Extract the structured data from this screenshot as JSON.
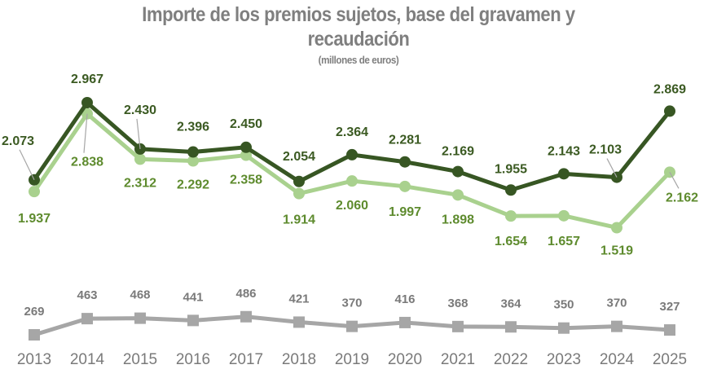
{
  "chart_data": {
    "type": "line",
    "title": "Importe de los premios sujetos, base del gravamen y recaudación",
    "title_line1": "Importe de los premios sujetos, base del gravamen y",
    "title_line2": "recaudación",
    "subtitle": "(millones de euros)",
    "xlabel": "",
    "ylabel": "",
    "grid": false,
    "legend": "none",
    "categories": [
      "2013",
      "2014",
      "2015",
      "2016",
      "2017",
      "2018",
      "2019",
      "2020",
      "2021",
      "2022",
      "2023",
      "2024",
      "2025"
    ],
    "series": [
      {
        "name": "Importe de los premios sujetos",
        "color": "#375623",
        "label_color": "#3b5a22",
        "values": [
          2073,
          2967,
          2430,
          2396,
          2450,
          2054,
          2364,
          2281,
          2169,
          1955,
          2143,
          2103,
          2869
        ],
        "labels": [
          "2.073",
          "2.967",
          "2.430",
          "2.396",
          "2.450",
          "2.054",
          "2.364",
          "2.281",
          "2.169",
          "1.955",
          "2.143",
          "2.103",
          "2.869"
        ]
      },
      {
        "name": "Base del gravamen",
        "color": "#a9d18e",
        "label_color": "#5e8b2e",
        "values": [
          1937,
          2838,
          2312,
          2292,
          2358,
          1914,
          2060,
          1997,
          1898,
          1654,
          1657,
          1519,
          2162
        ],
        "labels": [
          "1.937",
          "2.838",
          "2.312",
          "2.292",
          "2.358",
          "1.914",
          "2.060",
          "1.997",
          "1.898",
          "1.654",
          "1.657",
          "1.519",
          "2.162"
        ]
      },
      {
        "name": "Recaudación",
        "color": "#a6a6a6",
        "label_color": "#7a7a7a",
        "values": [
          269,
          463,
          468,
          441,
          486,
          421,
          370,
          416,
          368,
          364,
          350,
          370,
          327
        ],
        "labels": [
          "269",
          "463",
          "468",
          "441",
          "486",
          "421",
          "370",
          "416",
          "368",
          "364",
          "350",
          "370",
          "327"
        ]
      }
    ]
  }
}
